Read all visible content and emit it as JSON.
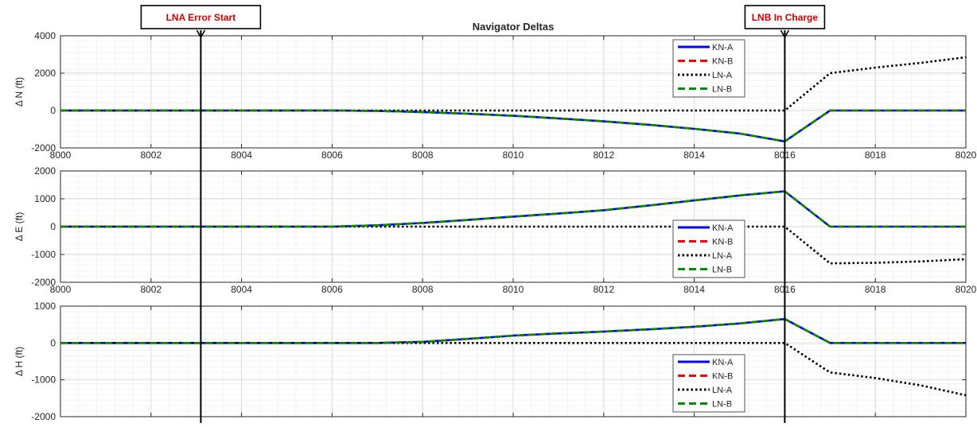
{
  "figure_title": "Navigator Deltas",
  "annotations": [
    {
      "label": "LNA Error Start",
      "x": 8003.1,
      "text_color": "#d40000"
    },
    {
      "label": "LNB In Charge",
      "x": 8016,
      "text_color": "#d40000"
    }
  ],
  "legend_entries": [
    {
      "name": "KN-A",
      "color": "#0000ff",
      "dash": "solid"
    },
    {
      "name": "KN-B",
      "color": "#ff0000",
      "dash": "dashed"
    },
    {
      "name": "LN-A",
      "color": "#000000",
      "dash": "dotted"
    },
    {
      "name": "LN-B",
      "color": "#00a000",
      "dash": "dashed"
    }
  ],
  "colors": {
    "KN-A": "#0000ff",
    "KN-B": "#ff0000",
    "LN-A": "#000000",
    "LN-B": "#008f00"
  },
  "chart_data": [
    {
      "type": "line",
      "title": "Navigator Deltas",
      "ylabel": "Δ N (ft)",
      "xlim": [
        8000,
        8020
      ],
      "ylim": [
        -2000,
        4000
      ],
      "xticks": [
        8000,
        8002,
        8004,
        8006,
        8008,
        8010,
        8012,
        8014,
        8016,
        8018,
        8020
      ],
      "yticks": [
        -2000,
        0,
        2000,
        4000
      ],
      "show_xtick_labels": true,
      "grid": "on (major and minor)",
      "legend": "top-right",
      "series": [
        {
          "name": "KN-A",
          "x": [
            8000,
            8006,
            8007,
            8008,
            8009,
            8010,
            8011,
            8012,
            8013,
            8014,
            8015,
            8016,
            8017,
            8020
          ],
          "y": [
            0,
            0,
            -20,
            -80,
            -170,
            -280,
            -420,
            -580,
            -760,
            -980,
            -1230,
            -1650,
            0,
            0
          ]
        },
        {
          "name": "KN-B",
          "x": [
            8000,
            8006,
            8007,
            8008,
            8009,
            8010,
            8011,
            8012,
            8013,
            8014,
            8015,
            8016,
            8017,
            8020
          ],
          "y": [
            0,
            0,
            -20,
            -80,
            -170,
            -280,
            -420,
            -580,
            -760,
            -980,
            -1230,
            -1650,
            0,
            0
          ]
        },
        {
          "name": "LN-A",
          "x": [
            8000,
            8016,
            8017,
            8018,
            8019,
            8020
          ],
          "y": [
            0,
            0,
            2000,
            2300,
            2550,
            2850
          ]
        },
        {
          "name": "LN-B",
          "x": [
            8000,
            8006,
            8007,
            8008,
            8009,
            8010,
            8011,
            8012,
            8013,
            8014,
            8015,
            8016,
            8017,
            8020
          ],
          "y": [
            0,
            0,
            -20,
            -80,
            -170,
            -280,
            -420,
            -580,
            -760,
            -980,
            -1230,
            -1650,
            0,
            0
          ]
        }
      ]
    },
    {
      "type": "line",
      "ylabel": "Δ E (ft)",
      "xlim": [
        8000,
        8020
      ],
      "ylim": [
        -2000,
        2000
      ],
      "xticks": [
        8000,
        8002,
        8004,
        8006,
        8008,
        8010,
        8012,
        8014,
        8016,
        8018,
        8020
      ],
      "yticks": [
        -2000,
        -1000,
        0,
        1000,
        2000
      ],
      "show_xtick_labels": true,
      "grid": "on (major and minor)",
      "legend": "bottom-center",
      "series": [
        {
          "name": "KN-A",
          "x": [
            8000,
            8006,
            8007,
            8008,
            8009,
            8010,
            8011,
            8012,
            8013,
            8014,
            8015,
            8016,
            8017,
            8020
          ],
          "y": [
            0,
            0,
            50,
            130,
            240,
            360,
            470,
            590,
            760,
            940,
            1120,
            1270,
            0,
            0
          ]
        },
        {
          "name": "KN-B",
          "x": [
            8000,
            8006,
            8007,
            8008,
            8009,
            8010,
            8011,
            8012,
            8013,
            8014,
            8015,
            8016,
            8017,
            8020
          ],
          "y": [
            0,
            0,
            50,
            130,
            240,
            360,
            470,
            590,
            760,
            940,
            1120,
            1270,
            0,
            0
          ]
        },
        {
          "name": "LN-A",
          "x": [
            8000,
            8016,
            8017,
            8018,
            8019,
            8020
          ],
          "y": [
            0,
            0,
            -1320,
            -1300,
            -1250,
            -1170
          ]
        },
        {
          "name": "LN-B",
          "x": [
            8000,
            8006,
            8007,
            8008,
            8009,
            8010,
            8011,
            8012,
            8013,
            8014,
            8015,
            8016,
            8017,
            8020
          ],
          "y": [
            0,
            0,
            50,
            130,
            240,
            360,
            470,
            590,
            760,
            940,
            1120,
            1270,
            0,
            0
          ]
        }
      ]
    },
    {
      "type": "line",
      "ylabel": "Δ H (ft)",
      "xlim": [
        8000,
        8020
      ],
      "ylim": [
        -2000,
        1000
      ],
      "xticks": [
        8000,
        8002,
        8004,
        8006,
        8008,
        8010,
        8012,
        8014,
        8016,
        8018,
        8020
      ],
      "yticks": [
        -2000,
        -1000,
        0,
        1000
      ],
      "show_xtick_labels": false,
      "grid": "on (major and minor)",
      "legend": "bottom-center",
      "series": [
        {
          "name": "KN-A",
          "x": [
            8000,
            8007,
            8008,
            8009,
            8010,
            8011,
            8012,
            8013,
            8014,
            8015,
            8016,
            8017,
            8020
          ],
          "y": [
            0,
            0,
            30,
            110,
            200,
            260,
            310,
            370,
            440,
            530,
            650,
            0,
            0
          ]
        },
        {
          "name": "KN-B",
          "x": [
            8000,
            8007,
            8008,
            8009,
            8010,
            8011,
            8012,
            8013,
            8014,
            8015,
            8016,
            8017,
            8020
          ],
          "y": [
            0,
            0,
            30,
            110,
            200,
            260,
            310,
            370,
            440,
            530,
            650,
            0,
            0
          ]
        },
        {
          "name": "LN-A",
          "x": [
            8000,
            8016,
            8017,
            8018,
            8019,
            8020
          ],
          "y": [
            0,
            0,
            -800,
            -950,
            -1150,
            -1420
          ]
        },
        {
          "name": "LN-B",
          "x": [
            8000,
            8007,
            8008,
            8009,
            8010,
            8011,
            8012,
            8013,
            8014,
            8015,
            8016,
            8017,
            8020
          ],
          "y": [
            0,
            0,
            30,
            110,
            200,
            260,
            310,
            370,
            440,
            530,
            650,
            0,
            0
          ]
        }
      ]
    }
  ]
}
